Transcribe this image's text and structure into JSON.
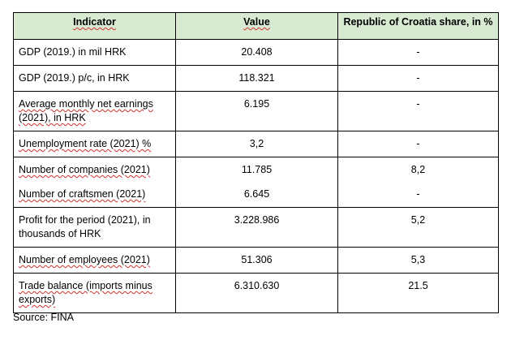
{
  "table": {
    "headers": {
      "indicator": "Indicator",
      "value": "Value",
      "share": "Republic of Croatia share, in %"
    },
    "rows": [
      {
        "indicator": "GDP (2019.) in mil HRK",
        "value": "20.408",
        "share": "-"
      },
      {
        "indicator": "GDP (2019.) p/c, in HRK",
        "value": "118.321",
        "share": "-"
      },
      {
        "indicator": "Average monthly net earnings (2021), in HRK",
        "value": "6.195",
        "share": "-"
      },
      {
        "indicator": "Unemployment rate (2021) %",
        "value": "3,2",
        "share": "-"
      },
      {
        "indicator": "Number of companies (2021)",
        "value": "11.785",
        "share": "8,2"
      },
      {
        "indicator": "Number of craftsmen (2021)",
        "value": "6.645",
        "share": "-"
      },
      {
        "indicator": "Profit for the period (2021), in thousands of HRK",
        "value": "3.228.986",
        "share": "5,2"
      },
      {
        "indicator": "Number of employees (2021)",
        "value": "51.306",
        "share": "5,3"
      },
      {
        "indicator": "Trade balance (imports minus exports)",
        "value": "6.310.630",
        "share": "21.5"
      }
    ]
  },
  "source": "Source: FINA"
}
